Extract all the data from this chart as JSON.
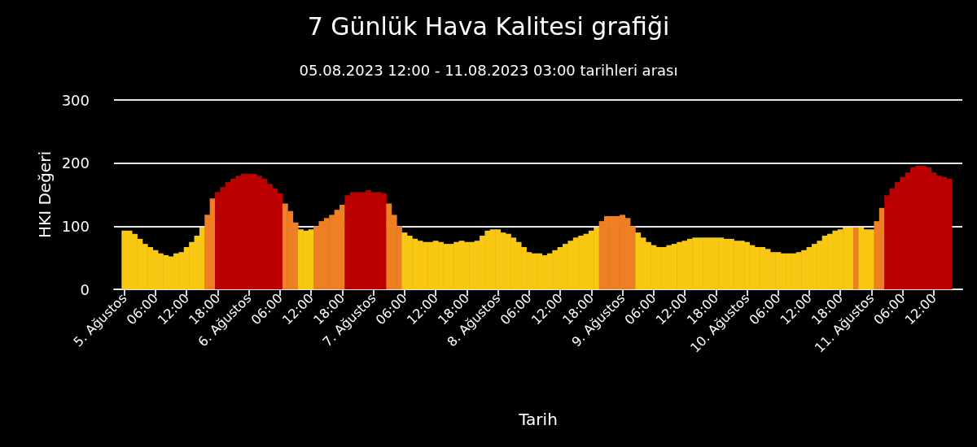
{
  "chart_data": {
    "type": "bar",
    "title": "7 Günlük Hava Kalitesi grafiği",
    "subtitle": "05.08.2023 12:00 - 11.08.2023 03:00 tarihleri arası",
    "xlabel": "Tarih",
    "ylabel": "HKI Değeri",
    "x": [
      "2023-08-05T00:00",
      "2023-08-05T01:00",
      "2023-08-05T02:00",
      "2023-08-05T03:00",
      "2023-08-05T04:00",
      "2023-08-05T05:00",
      "2023-08-05T06:00",
      "2023-08-05T07:00",
      "2023-08-05T08:00",
      "2023-08-05T09:00",
      "2023-08-05T10:00",
      "2023-08-05T11:00",
      "2023-08-05T12:00",
      "2023-08-05T13:00",
      "2023-08-05T14:00",
      "2023-08-05T15:00",
      "2023-08-05T16:00",
      "2023-08-05T17:00",
      "2023-08-05T18:00",
      "2023-08-05T19:00",
      "2023-08-05T20:00",
      "2023-08-05T21:00",
      "2023-08-05T22:00",
      "2023-08-05T23:00",
      "2023-08-06T00:00",
      "2023-08-06T01:00",
      "2023-08-06T02:00",
      "2023-08-06T03:00",
      "2023-08-06T04:00",
      "2023-08-06T05:00",
      "2023-08-06T06:00",
      "2023-08-06T07:00",
      "2023-08-06T08:00",
      "2023-08-06T09:00",
      "2023-08-06T10:00",
      "2023-08-06T11:00",
      "2023-08-06T12:00",
      "2023-08-06T13:00",
      "2023-08-06T14:00",
      "2023-08-06T15:00",
      "2023-08-06T16:00",
      "2023-08-06T17:00",
      "2023-08-06T18:00",
      "2023-08-06T19:00",
      "2023-08-06T20:00",
      "2023-08-06T21:00",
      "2023-08-06T22:00",
      "2023-08-06T23:00",
      "2023-08-07T00:00",
      "2023-08-07T01:00",
      "2023-08-07T02:00",
      "2023-08-07T03:00",
      "2023-08-07T04:00",
      "2023-08-07T05:00",
      "2023-08-07T06:00",
      "2023-08-07T07:00",
      "2023-08-07T08:00",
      "2023-08-07T09:00",
      "2023-08-07T10:00",
      "2023-08-07T11:00",
      "2023-08-07T12:00",
      "2023-08-07T13:00",
      "2023-08-07T14:00",
      "2023-08-07T15:00",
      "2023-08-07T16:00",
      "2023-08-07T17:00",
      "2023-08-07T18:00",
      "2023-08-07T19:00",
      "2023-08-07T20:00",
      "2023-08-07T21:00",
      "2023-08-07T22:00",
      "2023-08-07T23:00",
      "2023-08-08T00:00",
      "2023-08-08T01:00",
      "2023-08-08T02:00",
      "2023-08-08T03:00",
      "2023-08-08T04:00",
      "2023-08-08T05:00",
      "2023-08-08T06:00",
      "2023-08-08T07:00",
      "2023-08-08T08:00",
      "2023-08-08T09:00",
      "2023-08-08T10:00",
      "2023-08-08T11:00",
      "2023-08-08T12:00",
      "2023-08-08T13:00",
      "2023-08-08T14:00",
      "2023-08-08T15:00",
      "2023-08-08T16:00",
      "2023-08-08T17:00",
      "2023-08-08T18:00",
      "2023-08-08T19:00",
      "2023-08-08T20:00",
      "2023-08-08T21:00",
      "2023-08-08T22:00",
      "2023-08-08T23:00",
      "2023-08-09T00:00",
      "2023-08-09T01:00",
      "2023-08-09T02:00",
      "2023-08-09T03:00",
      "2023-08-09T04:00",
      "2023-08-09T05:00",
      "2023-08-09T06:00",
      "2023-08-09T07:00",
      "2023-08-09T08:00",
      "2023-08-09T09:00",
      "2023-08-09T10:00",
      "2023-08-09T11:00",
      "2023-08-09T12:00",
      "2023-08-09T13:00",
      "2023-08-09T14:00",
      "2023-08-09T15:00",
      "2023-08-09T16:00",
      "2023-08-09T17:00",
      "2023-08-09T18:00",
      "2023-08-09T19:00",
      "2023-08-09T20:00",
      "2023-08-09T21:00",
      "2023-08-09T22:00",
      "2023-08-09T23:00",
      "2023-08-10T00:00",
      "2023-08-10T01:00",
      "2023-08-10T02:00",
      "2023-08-10T03:00",
      "2023-08-10T04:00",
      "2023-08-10T05:00",
      "2023-08-10T06:00",
      "2023-08-10T07:00",
      "2023-08-10T08:00",
      "2023-08-10T09:00",
      "2023-08-10T10:00",
      "2023-08-10T11:00",
      "2023-08-10T12:00",
      "2023-08-10T13:00",
      "2023-08-10T14:00",
      "2023-08-10T15:00",
      "2023-08-10T16:00",
      "2023-08-10T17:00",
      "2023-08-10T18:00",
      "2023-08-10T19:00",
      "2023-08-10T20:00",
      "2023-08-10T21:00",
      "2023-08-10T22:00",
      "2023-08-10T23:00",
      "2023-08-11T00:00",
      "2023-08-11T01:00",
      "2023-08-11T02:00",
      "2023-08-11T03:00",
      "2023-08-11T04:00",
      "2023-08-11T05:00",
      "2023-08-11T06:00",
      "2023-08-11T07:00",
      "2023-08-11T08:00",
      "2023-08-11T09:00",
      "2023-08-11T10:00",
      "2023-08-11T11:00",
      "2023-08-11T12:00",
      "2023-08-11T13:00",
      "2023-08-11T14:00",
      "2023-08-11T15:00"
    ],
    "values": [
      93,
      93,
      88,
      80,
      72,
      67,
      62,
      57,
      54,
      52,
      57,
      59,
      67,
      75,
      85,
      98,
      118,
      144,
      154,
      162,
      170,
      175,
      180,
      183,
      183,
      183,
      180,
      175,
      167,
      160,
      152,
      136,
      124,
      106,
      95,
      93,
      95,
      100,
      108,
      113,
      118,
      126,
      134,
      149,
      154,
      154,
      154,
      157,
      154,
      154,
      152,
      136,
      118,
      100,
      90,
      85,
      80,
      77,
      75,
      75,
      77,
      75,
      72,
      72,
      75,
      77,
      75,
      75,
      77,
      85,
      93,
      95,
      95,
      90,
      88,
      82,
      75,
      67,
      59,
      57,
      57,
      54,
      57,
      62,
      67,
      72,
      77,
      82,
      85,
      88,
      93,
      98,
      108,
      116,
      116,
      116,
      118,
      113,
      100,
      90,
      82,
      75,
      70,
      67,
      67,
      70,
      72,
      75,
      77,
      80,
      82,
      82,
      82,
      82,
      82,
      82,
      80,
      80,
      77,
      77,
      75,
      70,
      67,
      67,
      64,
      59,
      59,
      57,
      57,
      57,
      59,
      62,
      67,
      72,
      77,
      85,
      88,
      93,
      95,
      98,
      98,
      98,
      98,
      95,
      95,
      108,
      129,
      149,
      160,
      170,
      178,
      185,
      193,
      196,
      196,
      193,
      185,
      180,
      178,
      175
    ],
    "colors": [
      "#f9c813",
      "#f9c813",
      "#f9c813",
      "#f9c813",
      "#f9c813",
      "#f9c813",
      "#f9c813",
      "#f9c813",
      "#f9c813",
      "#f9c813",
      "#f9c813",
      "#f9c813",
      "#f9c813",
      "#f9c813",
      "#f9c813",
      "#f9c813",
      "#ee7f22",
      "#ee7f22",
      "#bb0000",
      "#bb0000",
      "#bb0000",
      "#bb0000",
      "#bb0000",
      "#bb0000",
      "#bb0000",
      "#bb0000",
      "#bb0000",
      "#bb0000",
      "#bb0000",
      "#bb0000",
      "#bb0000",
      "#ee7f22",
      "#ee7f22",
      "#ee7f22",
      "#f9c813",
      "#f9c813",
      "#f9c813",
      "#ee7f22",
      "#ee7f22",
      "#ee7f22",
      "#ee7f22",
      "#ee7f22",
      "#ee7f22",
      "#bb0000",
      "#bb0000",
      "#bb0000",
      "#bb0000",
      "#bb0000",
      "#bb0000",
      "#bb0000",
      "#bb0000",
      "#ee7f22",
      "#ee7f22",
      "#ee7f22",
      "#f9c813",
      "#f9c813",
      "#f9c813",
      "#f9c813",
      "#f9c813",
      "#f9c813",
      "#f9c813",
      "#f9c813",
      "#f9c813",
      "#f9c813",
      "#f9c813",
      "#f9c813",
      "#f9c813",
      "#f9c813",
      "#f9c813",
      "#f9c813",
      "#f9c813",
      "#f9c813",
      "#f9c813",
      "#f9c813",
      "#f9c813",
      "#f9c813",
      "#f9c813",
      "#f9c813",
      "#f9c813",
      "#f9c813",
      "#f9c813",
      "#f9c813",
      "#f9c813",
      "#f9c813",
      "#f9c813",
      "#f9c813",
      "#f9c813",
      "#f9c813",
      "#f9c813",
      "#f9c813",
      "#f9c813",
      "#f9c813",
      "#ee7f22",
      "#ee7f22",
      "#ee7f22",
      "#ee7f22",
      "#ee7f22",
      "#ee7f22",
      "#ee7f22",
      "#f9c813",
      "#f9c813",
      "#f9c813",
      "#f9c813",
      "#f9c813",
      "#f9c813",
      "#f9c813",
      "#f9c813",
      "#f9c813",
      "#f9c813",
      "#f9c813",
      "#f9c813",
      "#f9c813",
      "#f9c813",
      "#f9c813",
      "#f9c813",
      "#f9c813",
      "#f9c813",
      "#f9c813",
      "#f9c813",
      "#f9c813",
      "#f9c813",
      "#f9c813",
      "#f9c813",
      "#f9c813",
      "#f9c813",
      "#f9c813",
      "#f9c813",
      "#f9c813",
      "#f9c813",
      "#f9c813",
      "#f9c813",
      "#f9c813",
      "#f9c813",
      "#f9c813",
      "#f9c813",
      "#f9c813",
      "#f9c813",
      "#f9c813",
      "#f9c813",
      "#f9c813",
      "#f9c813",
      "#ee7f22",
      "#f9c813",
      "#f9c813",
      "#f9c813",
      "#ee7f22",
      "#ee7f22",
      "#bb0000",
      "#bb0000",
      "#bb0000",
      "#bb0000",
      "#bb0000",
      "#bb0000",
      "#bb0000",
      "#bb0000",
      "#bb0000",
      "#bb0000",
      "#bb0000",
      "#bb0000",
      "#bb0000"
    ],
    "xlim": [
      "2023-08-04T22:00",
      "2023-08-11T17:30"
    ],
    "xticks": [
      {
        "value": "2023-08-05T00:00",
        "label": "5. Ağustos"
      },
      {
        "value": "2023-08-05T06:00",
        "label": "06:00"
      },
      {
        "value": "2023-08-05T12:00",
        "label": "12:00"
      },
      {
        "value": "2023-08-05T18:00",
        "label": "18:00"
      },
      {
        "value": "2023-08-06T00:00",
        "label": "6. Ağustos"
      },
      {
        "value": "2023-08-06T06:00",
        "label": "06:00"
      },
      {
        "value": "2023-08-06T12:00",
        "label": "12:00"
      },
      {
        "value": "2023-08-06T18:00",
        "label": "18:00"
      },
      {
        "value": "2023-08-07T00:00",
        "label": "7. Ağustos"
      },
      {
        "value": "2023-08-07T06:00",
        "label": "06:00"
      },
      {
        "value": "2023-08-07T12:00",
        "label": "12:00"
      },
      {
        "value": "2023-08-07T18:00",
        "label": "18:00"
      },
      {
        "value": "2023-08-08T00:00",
        "label": "8. Ağustos"
      },
      {
        "value": "2023-08-08T06:00",
        "label": "06:00"
      },
      {
        "value": "2023-08-08T12:00",
        "label": "12:00"
      },
      {
        "value": "2023-08-08T18:00",
        "label": "18:00"
      },
      {
        "value": "2023-08-09T00:00",
        "label": "9. Ağustos"
      },
      {
        "value": "2023-08-09T06:00",
        "label": "06:00"
      },
      {
        "value": "2023-08-09T12:00",
        "label": "12:00"
      },
      {
        "value": "2023-08-09T18:00",
        "label": "18:00"
      },
      {
        "value": "2023-08-10T00:00",
        "label": "10. Ağustos"
      },
      {
        "value": "2023-08-10T06:00",
        "label": "06:00"
      },
      {
        "value": "2023-08-10T12:00",
        "label": "12:00"
      },
      {
        "value": "2023-08-10T18:00",
        "label": "18:00"
      },
      {
        "value": "2023-08-11T00:00",
        "label": "11. Ağustos"
      },
      {
        "value": "2023-08-11T06:00",
        "label": "06:00"
      },
      {
        "value": "2023-08-11T12:00",
        "label": "12:00"
      }
    ],
    "ylim": [
      0,
      300
    ],
    "yticks": [
      0,
      100,
      200,
      300
    ],
    "grid": "y"
  }
}
